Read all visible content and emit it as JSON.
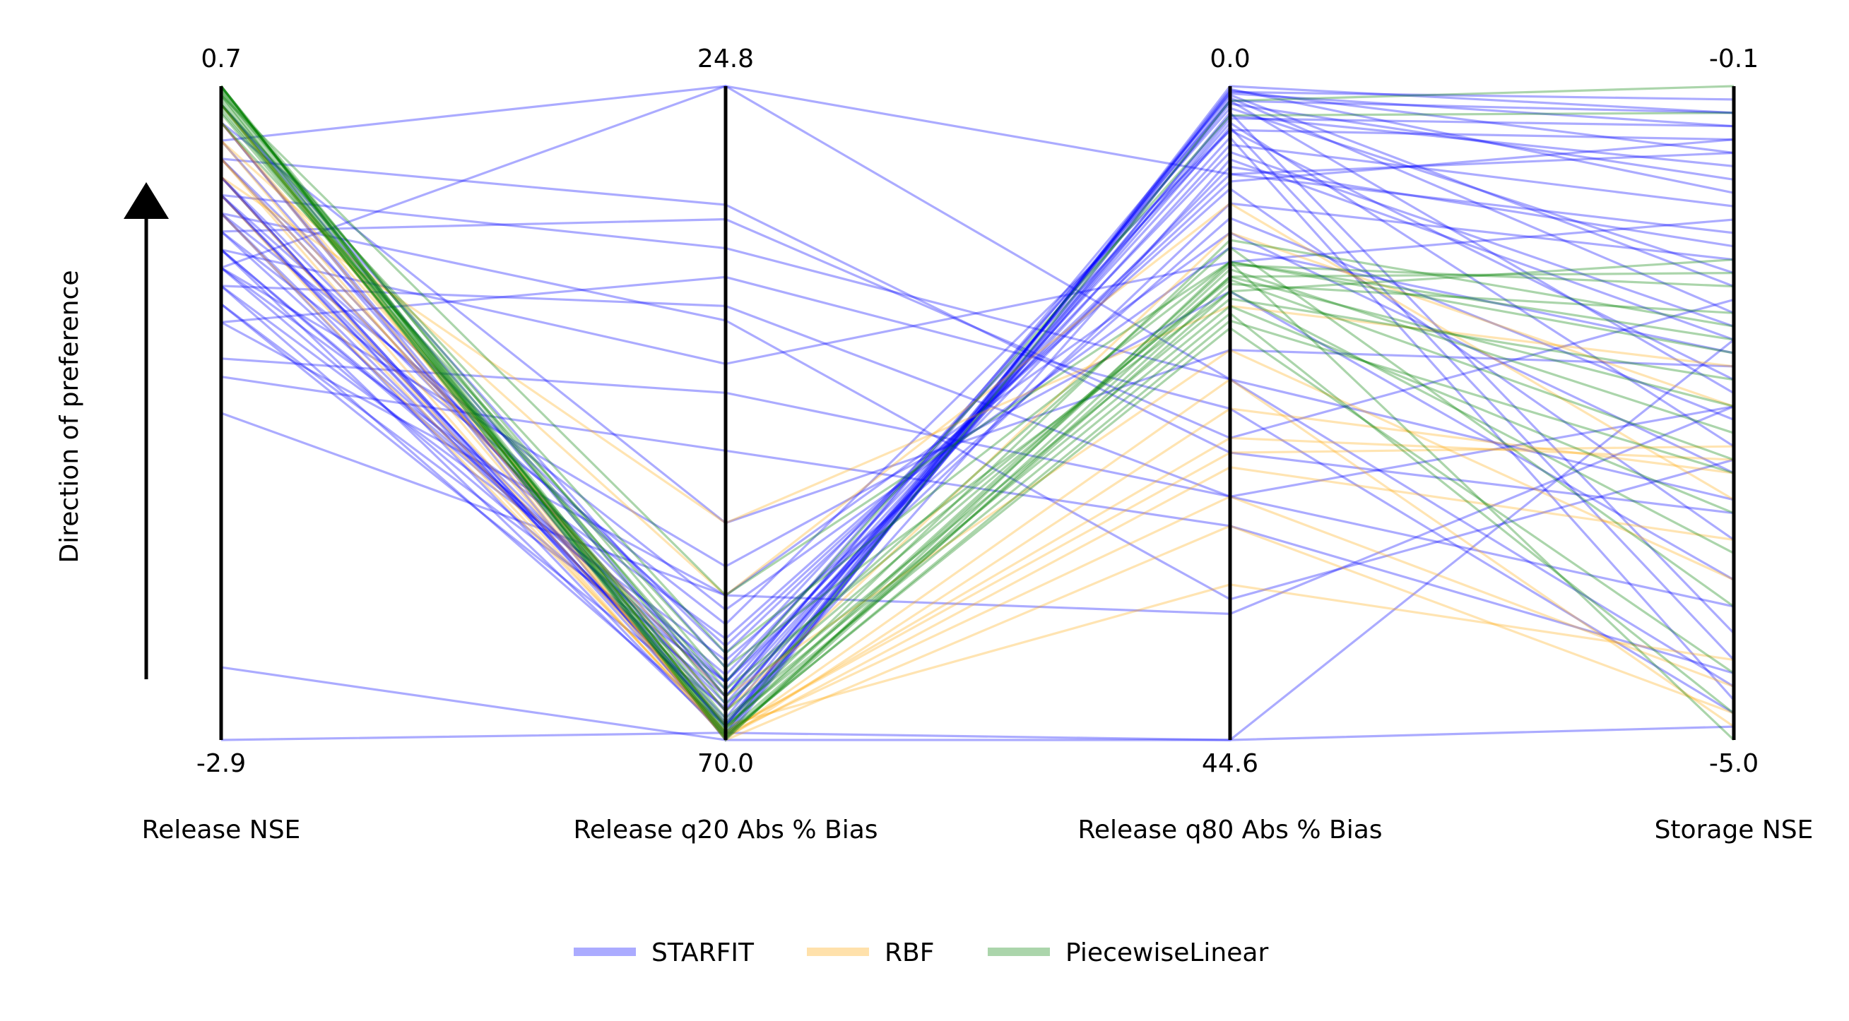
{
  "chart_data": {
    "type": "parallel_coordinates",
    "direction_label": "Direction of preference",
    "axes": [
      {
        "name": "Release NSE",
        "top_label": "0.7",
        "bottom_label": "-2.9",
        "top": 0.7,
        "bottom": -2.9
      },
      {
        "name": "Release q20 Abs % Bias",
        "top_label": "24.8",
        "bottom_label": "70.0",
        "top": 24.8,
        "bottom": 70.0
      },
      {
        "name": "Release q80 Abs % Bias",
        "top_label": "0.0",
        "bottom_label": "44.6",
        "top": 0.0,
        "bottom": 44.6
      },
      {
        "name": "Storage NSE",
        "top_label": "-0.1",
        "bottom_label": "-5.0",
        "top": -0.1,
        "bottom": -5.0
      }
    ],
    "series": [
      {
        "name": "STARFIT",
        "color": "#0000ff",
        "opacity": 0.33,
        "lines": [
          [
            0.5,
            70.0,
            0.0,
            -0.3
          ],
          [
            -0.3,
            24.8,
            6.0,
            -0.6
          ],
          [
            0.4,
            24.8,
            20.0,
            -3.2
          ],
          [
            -2.5,
            70.0,
            44.6,
            -2.0
          ],
          [
            -2.9,
            69.5,
            44.6,
            -4.9
          ],
          [
            -1.1,
            60.0,
            36.0,
            -2.5
          ],
          [
            -0.9,
            50.0,
            30.0,
            -4.5
          ],
          [
            -0.6,
            38.0,
            22.0,
            -4.8
          ],
          [
            0.1,
            36.0,
            20.0,
            -4.6
          ],
          [
            -0.1,
            34.0,
            24.0,
            -1.7
          ],
          [
            -0.4,
            40.0,
            28.0,
            -2.5
          ],
          [
            0.3,
            33.0,
            25.0,
            -3.3
          ],
          [
            0.0,
            41.0,
            35.0,
            -2.9
          ],
          [
            -0.8,
            46.0,
            28.0,
            -4.0
          ],
          [
            0.5,
            55.0,
            18.0,
            -2.2
          ],
          [
            -0.2,
            44.0,
            12.0,
            -1.1
          ],
          [
            0.6,
            65.0,
            3.0,
            -0.5
          ],
          [
            0.6,
            67.0,
            1.0,
            -0.3
          ],
          [
            0.2,
            69.0,
            0.5,
            -0.4
          ],
          [
            0.0,
            68.0,
            2.0,
            -0.7
          ],
          [
            -0.3,
            67.0,
            4.0,
            -1.0
          ],
          [
            -0.2,
            66.0,
            1.5,
            -1.5
          ],
          [
            0.1,
            68.5,
            0.8,
            -1.8
          ],
          [
            -0.4,
            69.0,
            5.0,
            -2.0
          ],
          [
            -0.1,
            62.0,
            3.0,
            -2.3
          ],
          [
            0.3,
            64.0,
            6.0,
            -1.2
          ],
          [
            0.2,
            69.5,
            0.2,
            -0.9
          ],
          [
            -0.5,
            66.0,
            8.0,
            -1.4
          ],
          [
            0.1,
            67.5,
            2.5,
            -2.8
          ],
          [
            -0.3,
            63.0,
            7.0,
            -3.5
          ],
          [
            0.0,
            69.8,
            0.3,
            -0.6
          ],
          [
            0.4,
            68.0,
            1.2,
            -0.8
          ],
          [
            -0.2,
            65.5,
            4.5,
            -1.9
          ],
          [
            -0.6,
            60.0,
            10.0,
            -3.0
          ],
          [
            0.2,
            69.0,
            1.8,
            -4.2
          ],
          [
            -0.1,
            66.5,
            3.5,
            -4.7
          ],
          [
            0.3,
            67.0,
            0.6,
            -1.6
          ],
          [
            -0.4,
            64.5,
            9.0,
            -2.6
          ],
          [
            0.1,
            68.8,
            2.2,
            -0.4
          ],
          [
            0.0,
            61.0,
            11.0,
            -2.1
          ],
          [
            -0.3,
            58.0,
            14.0,
            -3.8
          ],
          [
            0.5,
            69.2,
            0.4,
            -0.2
          ],
          [
            0.2,
            66.0,
            5.5,
            -1.3
          ],
          [
            -0.2,
            69.6,
            1.0,
            -2.4
          ],
          [
            0.1,
            63.5,
            6.5,
            -0.5
          ],
          [
            -0.5,
            67.8,
            2.8,
            -4.4
          ]
        ]
      },
      {
        "name": "RBF",
        "color": "#ffa500",
        "opacity": 0.3,
        "lines": [
          [
            0.6,
            70.0,
            30.0,
            -4.8
          ],
          [
            0.5,
            69.8,
            26.0,
            -3.5
          ],
          [
            0.4,
            69.5,
            24.0,
            -2.9
          ],
          [
            0.3,
            69.6,
            28.0,
            -4.6
          ],
          [
            0.2,
            69.9,
            22.0,
            -3.0
          ],
          [
            0.1,
            69.7,
            20.0,
            -4.9
          ],
          [
            0.5,
            68.0,
            10.0,
            -2.5
          ],
          [
            0.4,
            60.0,
            8.0,
            -3.2
          ],
          [
            0.2,
            55.0,
            15.0,
            -2.2
          ],
          [
            0.6,
            69.0,
            34.0,
            -4.4
          ],
          [
            0.0,
            69.4,
            25.0,
            -2.8
          ],
          [
            0.3,
            67.0,
            18.0,
            -3.8
          ]
        ]
      },
      {
        "name": "PiecewiseLinear",
        "color": "#008000",
        "opacity": 0.33,
        "lines": [
          [
            0.7,
            70.0,
            12.0,
            -2.0
          ],
          [
            0.7,
            69.8,
            13.0,
            -1.5
          ],
          [
            0.65,
            69.5,
            14.0,
            -1.4
          ],
          [
            0.6,
            69.7,
            16.0,
            -3.0
          ],
          [
            0.7,
            69.2,
            12.5,
            -2.7
          ],
          [
            0.6,
            68.5,
            15.0,
            -3.3
          ],
          [
            0.68,
            67.0,
            11.0,
            -4.0
          ],
          [
            0.62,
            69.9,
            13.5,
            -1.8
          ],
          [
            0.55,
            68.0,
            14.5,
            -2.3
          ],
          [
            0.7,
            69.4,
            1.0,
            -0.1
          ],
          [
            0.66,
            66.0,
            2.0,
            -0.3
          ],
          [
            0.6,
            64.0,
            12.0,
            -5.0
          ],
          [
            0.58,
            69.0,
            15.5,
            -4.8
          ],
          [
            0.7,
            67.5,
            13.0,
            -2.5
          ],
          [
            0.5,
            65.0,
            14.0,
            -3.6
          ],
          [
            0.65,
            60.0,
            12.0,
            -2.1
          ],
          [
            0.69,
            68.8,
            10.5,
            -1.9
          ],
          [
            0.64,
            69.6,
            16.5,
            -4.5
          ],
          [
            0.56,
            66.5,
            13.2,
            -2.9
          ],
          [
            0.67,
            69.1,
            12.2,
            -1.6
          ]
        ]
      }
    ],
    "legend": {
      "position": "bottom-center",
      "entries": [
        {
          "label": "STARFIT",
          "color": "#0000ff"
        },
        {
          "label": "RBF",
          "color": "#ffa500"
        },
        {
          "label": "PiecewiseLinear",
          "color": "#008000"
        }
      ]
    }
  }
}
